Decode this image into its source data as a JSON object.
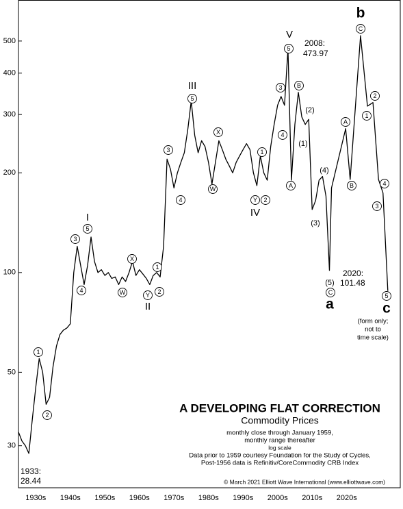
{
  "chart_data": {
    "type": "line",
    "title": "A DEVELOPING FLAT CORRECTION",
    "subtitle": "Commodity Prices",
    "notes": [
      "monthly close through January 1959,",
      "monthly range thereafter",
      "log scale",
      "Data prior to 1959 courtesy Foundation for the Study of Cycles,",
      "Post-1956 data is Refinitiv/CoreCommodity CRB Index"
    ],
    "credit": "© March 2021 Elliott Wave International (www.elliottwave.com)",
    "projection_note": [
      "(form only;",
      "not to",
      "time scale)"
    ],
    "callouts": [
      {
        "label": "1933:",
        "value": 28.44
      },
      {
        "label": "2008:",
        "value": 473.97
      },
      {
        "label": "2020:",
        "value": 101.48
      }
    ],
    "color": "#000000",
    "yscale": "log",
    "xlim": [
      1930,
      2040.5
    ],
    "ylim": [
      22.4,
      665
    ],
    "yticks": [
      30,
      50,
      100,
      200,
      300,
      400,
      500
    ],
    "xticks": [
      {
        "value": 1935,
        "label": "1930s"
      },
      {
        "value": 1945,
        "label": "1940s"
      },
      {
        "value": 1955,
        "label": "1950s"
      },
      {
        "value": 1965,
        "label": "1960s"
      },
      {
        "value": 1975,
        "label": "1970s"
      },
      {
        "value": 1985,
        "label": "1980s"
      },
      {
        "value": 1995,
        "label": "1990s"
      },
      {
        "value": 2005,
        "label": "2000s"
      },
      {
        "value": 2015,
        "label": "2010s"
      },
      {
        "value": 2025,
        "label": "2020s"
      }
    ],
    "x": [
      1930,
      1931,
      1932,
      1933,
      1934,
      1935,
      1936,
      1937,
      1938,
      1939,
      1940,
      1941,
      1942,
      1943,
      1944,
      1945,
      1946,
      1947,
      1948,
      1949,
      1950,
      1951,
      1952,
      1953,
      1954,
      1955,
      1956,
      1957,
      1958,
      1959,
      1960,
      1961,
      1962,
      1963,
      1964,
      1965,
      1966,
      1967,
      1968,
      1969,
      1970,
      1971,
      1972,
      1973,
      1974,
      1975,
      1976,
      1977,
      1978,
      1979,
      1980,
      1981,
      1982,
      1983,
      1984,
      1985,
      1986,
      1987,
      1988,
      1989,
      1990,
      1991,
      1992,
      1993,
      1994,
      1995,
      1996,
      1997,
      1998,
      1999,
      2000,
      2001,
      2002,
      2003,
      2004,
      2005,
      2006,
      2007,
      2008,
      2009,
      2010,
      2011,
      2012,
      2013,
      2014,
      2015,
      2016,
      2017,
      2018,
      2019,
      2020,
      2020.6,
      2024.7,
      2026,
      2029,
      2031,
      2032.6,
      2034.2,
      2035.5,
      2036.9
    ],
    "values": [
      33,
      31,
      30,
      28.44,
      36,
      45,
      55,
      50,
      40,
      42,
      52,
      60,
      65,
      67,
      68,
      70,
      100,
      120,
      105,
      92,
      105,
      128,
      108,
      100,
      102,
      98,
      100,
      96,
      97,
      92,
      97,
      94,
      100,
      108,
      98,
      102,
      99,
      96,
      92,
      98,
      100,
      97,
      120,
      220,
      205,
      180,
      200,
      215,
      230,
      270,
      330,
      260,
      230,
      250,
      240,
      215,
      185,
      215,
      250,
      235,
      220,
      210,
      200,
      215,
      225,
      235,
      245,
      235,
      200,
      183,
      225,
      200,
      190,
      240,
      280,
      320,
      340,
      320,
      473.97,
      190,
      280,
      350,
      295,
      280,
      290,
      155,
      165,
      190,
      195,
      170,
      101.48,
      180,
      272,
      191,
      519,
      318,
      326,
      191,
      174,
      88
    ],
    "waves": [
      "1",
      "2",
      "3",
      "4",
      "5",
      "I",
      "W",
      "X",
      "Y",
      "II",
      "1",
      "2",
      "3",
      "4",
      "5",
      "III",
      "W",
      "X",
      "Y",
      "2",
      "IV",
      "1",
      "3",
      "4",
      "5",
      "V",
      "A",
      "B",
      "(1)",
      "(2)",
      "(3)",
      "(4)",
      "(5)",
      "C",
      "a",
      "A",
      "B",
      "C",
      "b",
      "1",
      "2",
      "3",
      "4",
      "5",
      "c"
    ]
  }
}
